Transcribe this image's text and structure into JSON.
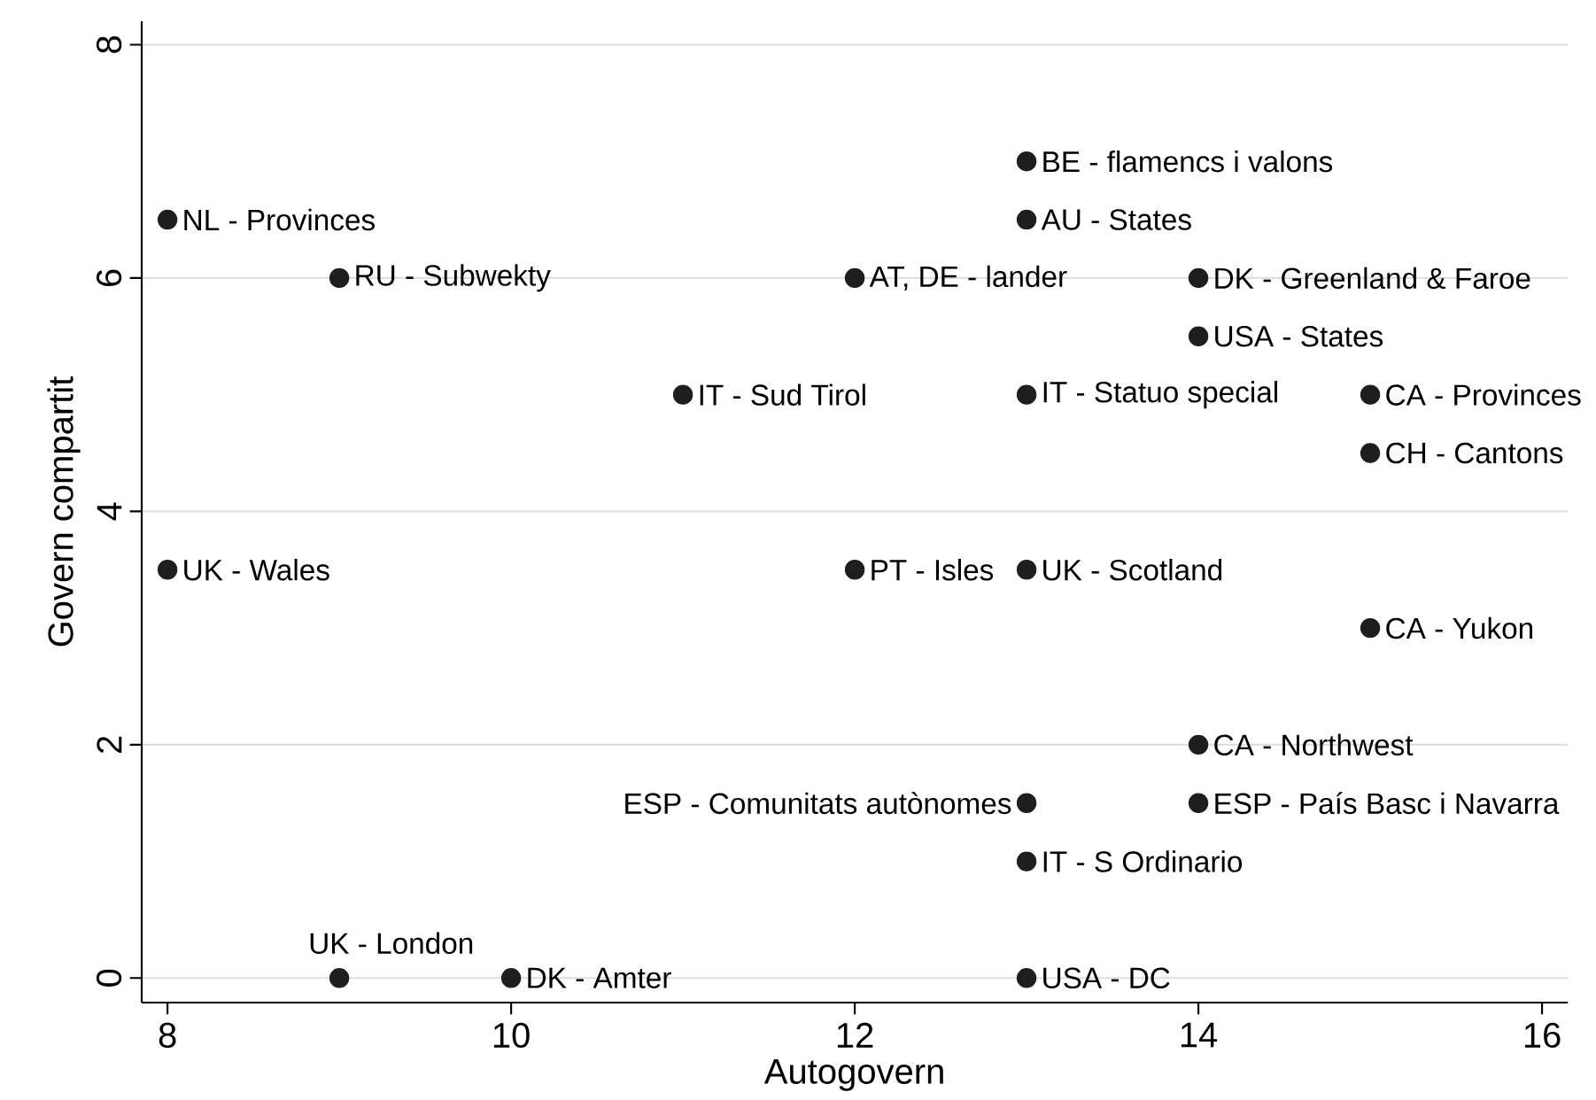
{
  "chart_data": {
    "type": "scatter",
    "xlabel": "Autogovern",
    "ylabel": "Govern compartit",
    "xlim": [
      7.85,
      16.15
    ],
    "ylim": [
      -0.21,
      8.2
    ],
    "xticks": [
      8,
      10,
      12,
      14,
      16
    ],
    "yticks": [
      0,
      2,
      4,
      6,
      8
    ],
    "grid": "y",
    "marker": "circle",
    "series": [
      {
        "color": "#1e1e1e",
        "x": [
          8,
          9,
          11,
          8,
          9,
          10,
          13,
          13,
          13,
          12,
          14,
          14,
          13,
          15,
          15,
          12,
          13,
          15,
          14,
          14,
          13,
          13
        ],
        "values": [
          6.5,
          6,
          5,
          3.5,
          0,
          0,
          1.5,
          7,
          6.5,
          6,
          6,
          5.5,
          5,
          5,
          4.5,
          3.5,
          3.5,
          3,
          2,
          1.5,
          1,
          0
        ]
      }
    ],
    "annotations": [
      {
        "text": "NL - Provinces",
        "x": 8,
        "y": 6.5
      },
      {
        "text": "RU - Subwekty",
        "x": 9,
        "y": 6
      },
      {
        "text": "IT - Sud Tirol",
        "x": 11,
        "y": 5
      },
      {
        "text": "UK - Wales",
        "x": 8,
        "y": 3.5
      },
      {
        "text": "UK - London",
        "x": 9,
        "y": 0
      },
      {
        "text": "DK - Amter",
        "x": 10,
        "y": 0
      },
      {
        "text": "ESP - Comunitats autònomes",
        "x": 13,
        "y": 1.5
      },
      {
        "text": "BE - flamencs i valons",
        "x": 13,
        "y": 7
      },
      {
        "text": "AU - States",
        "x": 13,
        "y": 6.5
      },
      {
        "text": "AT, DE - lander",
        "x": 12,
        "y": 6
      },
      {
        "text": "DK - Greenland & Faroe",
        "x": 14,
        "y": 6
      },
      {
        "text": "USA - States",
        "x": 14,
        "y": 5.5
      },
      {
        "text": "IT - Statuo special",
        "x": 13,
        "y": 5
      },
      {
        "text": "CA - Provinces",
        "x": 15,
        "y": 5
      },
      {
        "text": "CH - Cantons",
        "x": 15,
        "y": 4.5
      },
      {
        "text": "PT - Isles",
        "x": 12,
        "y": 3.5
      },
      {
        "text": "UK - Scotland",
        "x": 13,
        "y": 3.5
      },
      {
        "text": "CA - Yukon",
        "x": 15,
        "y": 3
      },
      {
        "text": "CA - Northwest",
        "x": 14,
        "y": 2
      },
      {
        "text": "ESP - País Basc i Navarra",
        "x": 14,
        "y": 1.5
      },
      {
        "text": "IT - S Ordinario",
        "x": 13,
        "y": 1
      },
      {
        "text": "USA - DC",
        "x": 13,
        "y": 0
      }
    ]
  }
}
